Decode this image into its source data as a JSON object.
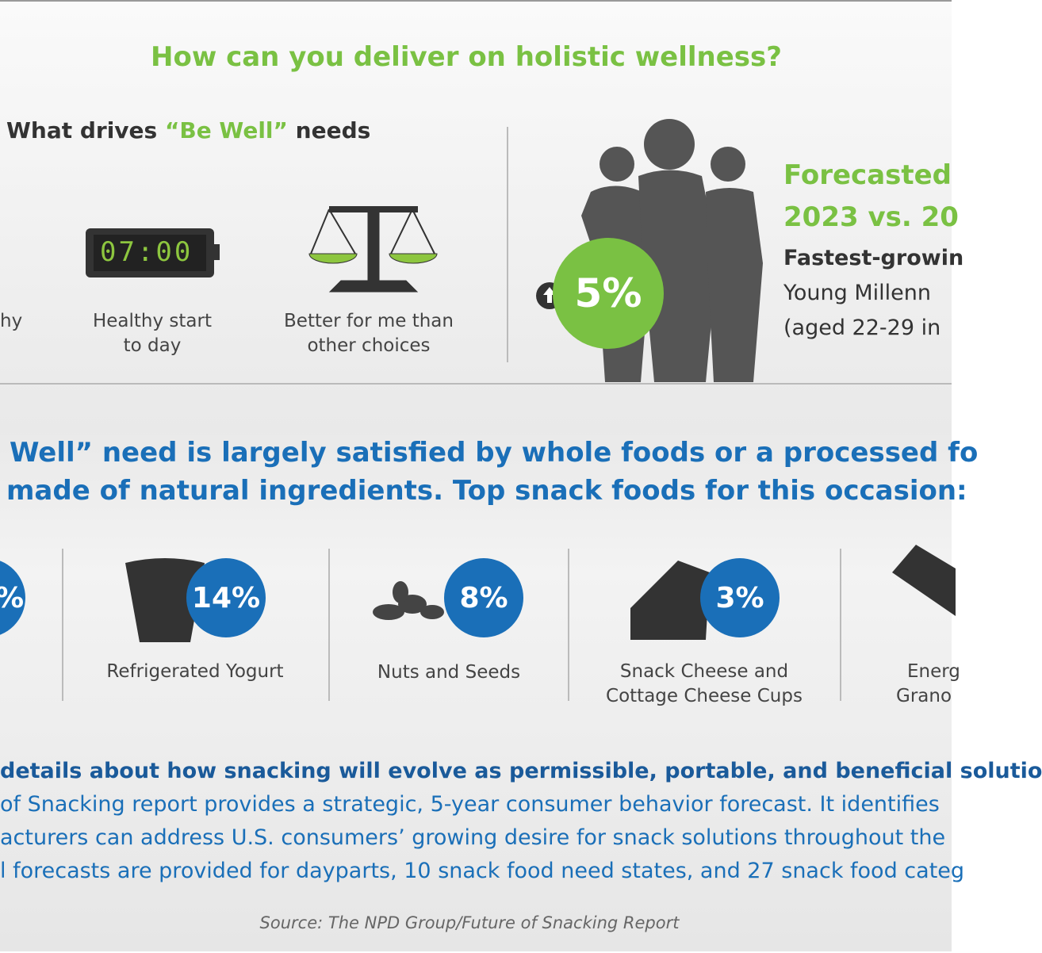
{
  "title": "How can you deliver on holistic wellness?",
  "drivers": {
    "heading_before": "What drives",
    "heading_highlight": "“Be Well”",
    "heading_after": "needs",
    "clock": "07:00",
    "items": [
      {
        "lines": [
          "hy"
        ]
      },
      {
        "lines": [
          "Healthy start",
          "to day"
        ]
      },
      {
        "lines": [
          "Better for me than",
          "other choices"
        ]
      }
    ]
  },
  "forecast": {
    "heading_lines": [
      "Forecasted",
      "2023 vs. 20"
    ],
    "badge": "5%",
    "detail_lines": [
      "Fastest-growin",
      "Young Millenn",
      "(aged 22-29 in"
    ]
  },
  "statement": {
    "lines": [
      "Well” need is largely satisfied by whole foods or a processed fo",
      "made of natural ingredients. Top snack foods for this occasion:"
    ]
  },
  "foods": [
    {
      "badge": "%",
      "lines": []
    },
    {
      "badge": "14%",
      "lines": [
        "Refrigerated Yogurt"
      ]
    },
    {
      "badge": "8%",
      "lines": [
        "Nuts and Seeds"
      ]
    },
    {
      "badge": "3%",
      "lines": [
        "Snack Cheese and",
        "Cottage Cheese Cups"
      ]
    },
    {
      "lines": [
        "Energ",
        "Grano"
      ]
    }
  ],
  "paragraph": {
    "lead": "details about how snacking will evolve as permissible, portable, and beneficial solutio",
    "lines": [
      "of Snacking report provides a strategic, 5-year consumer behavior forecast. It identifies",
      "acturers can address U.S. consumers’ growing desire for snack solutions throughout the",
      "l forecasts are provided for dayparts, 10 snack food need states, and 27 snack food categ"
    ]
  },
  "source": "Source: The NPD Group/Future of Snacking Report"
}
